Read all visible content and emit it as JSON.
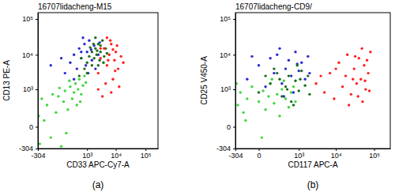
{
  "chart_data": [
    {
      "type": "scatter",
      "title": "16707lidacheng-M15",
      "caption": "(a)",
      "x_label": "CD33 APC-Cy7-A",
      "y_label": "CD13 PE-A",
      "log": true,
      "xlim": [
        -304,
        262144
      ],
      "ylim": [
        -304,
        150000
      ],
      "xticks": [
        -304,
        {
          "value": 1000,
          "label": "10³"
        },
        {
          "value": 10000,
          "label": "10⁴"
        },
        {
          "value": 100000,
          "label": "10⁵"
        }
      ],
      "yticks": [
        -304,
        0,
        {
          "value": 1000,
          "label": "10³"
        },
        {
          "value": 10000,
          "label": "10⁴"
        },
        {
          "value": 100000,
          "label": "10⁵"
        }
      ],
      "series": [
        {
          "color": "#3cd83c",
          "x": [
            -250,
            -150,
            -100,
            -50,
            0,
            20,
            50,
            80,
            100,
            150,
            200,
            250,
            300,
            350,
            400,
            450,
            500,
            600,
            700,
            800,
            -200,
            -280,
            120,
            30,
            -30,
            180,
            550,
            900
          ],
          "values": [
            -200,
            50,
            300,
            -100,
            150,
            600,
            -250,
            400,
            900,
            200,
            1200,
            500,
            800,
            1500,
            300,
            1000,
            2000,
            700,
            1300,
            2500,
            500,
            100,
            -50,
            1100,
            700,
            1800,
            400,
            1600
          ]
        },
        {
          "color": "#2a2ad2",
          "x": [
            100,
            200,
            300,
            400,
            500,
            600,
            800,
            900,
            1000,
            1200,
            1500,
            1800,
            2000,
            2500,
            300,
            700,
            1100,
            50,
            1400,
            2800,
            600,
            -50
          ],
          "values": [
            3000,
            6000,
            10000,
            4000,
            15000,
            8000,
            20000,
            5000,
            12000,
            25000,
            7000,
            18000,
            4000,
            10000,
            2000,
            30000,
            3000,
            8000,
            14000,
            22000,
            12000,
            5000
          ]
        },
        {
          "color": "#1c6e1c",
          "x": [
            500,
            800,
            1000,
            1200,
            1500,
            1800,
            2000,
            2200,
            2500,
            2800,
            3000,
            3500,
            4000,
            4500,
            1500,
            1000,
            2000,
            2500,
            3000,
            1700,
            600,
            5000,
            1300,
            2300,
            3800
          ],
          "values": [
            2500,
            4000,
            6000,
            9000,
            12000,
            8000,
            15000,
            10000,
            20000,
            7000,
            12000,
            25000,
            9000,
            15000,
            5000,
            3000,
            30000,
            5000,
            18000,
            20000,
            8000,
            11000,
            16000,
            13000,
            6000
          ]
        },
        {
          "color": "#ff2020",
          "x": [
            2500,
            3000,
            4000,
            5000,
            6000,
            7000,
            8000,
            9000,
            10000,
            12000,
            15000,
            4500,
            6500,
            3500,
            11000,
            5500,
            8000,
            13000,
            7000,
            9500,
            3000,
            18000,
            5000,
            2500
          ],
          "values": [
            3000,
            8000,
            15000,
            5000,
            10000,
            20000,
            2000,
            7000,
            12000,
            4000,
            9000,
            1500,
            25000,
            600,
            18000,
            7000,
            14000,
            1200,
            800,
            3500,
            15000,
            6000,
            30000,
            1000
          ]
        }
      ]
    },
    {
      "type": "scatter",
      "title": "16707lidacheng-CD9/",
      "caption": "(b)",
      "x_label": "CD117 APC-A",
      "y_label": "CD25 V450-A",
      "log": true,
      "xlim": [
        -304,
        262144
      ],
      "ylim": [
        -304,
        150000
      ],
      "xticks": [
        -304,
        0,
        {
          "value": 1000,
          "label": "10³"
        },
        {
          "value": 10000,
          "label": "10⁴"
        },
        {
          "value": 100000,
          "label": "10⁵"
        }
      ],
      "yticks": [
        -304,
        0,
        {
          "value": 1000,
          "label": "10³"
        },
        {
          "value": 10000,
          "label": "10⁴"
        },
        {
          "value": 100000,
          "label": "10⁵"
        }
      ],
      "series": [
        {
          "color": "#3cd83c",
          "x": [
            -250,
            -200,
            -150,
            -100,
            -50,
            0,
            30,
            50,
            80,
            100,
            150,
            200,
            250,
            300,
            400,
            500,
            600,
            800,
            -280,
            20,
            120,
            350,
            -120,
            700
          ],
          "values": [
            300,
            800,
            150,
            500,
            1200,
            400,
            900,
            200,
            600,
            1500,
            350,
            700,
            100,
            1000,
            500,
            250,
            800,
            400,
            1500,
            -100,
            2000,
            1800,
            50,
            1200
          ]
        },
        {
          "color": "#2a2ad2",
          "x": [
            -100,
            0,
            50,
            100,
            150,
            200,
            300,
            400,
            500,
            600,
            800,
            1000,
            1200,
            1500,
            -50,
            250,
            700,
            350,
            900,
            2000,
            1800
          ],
          "values": [
            2000,
            5000,
            1200,
            8000,
            3000,
            10000,
            1500,
            4000,
            7000,
            2500,
            12000,
            3500,
            6000,
            2000,
            9000,
            15000,
            800,
            600,
            5500,
            3000,
            9000
          ]
        },
        {
          "color": "#1c6e1c",
          "x": [
            0,
            100,
            200,
            300,
            400,
            500,
            600,
            800,
            1000,
            1200,
            1500,
            2000,
            250,
            700,
            900,
            1800,
            150,
            450,
            1100,
            50
          ],
          "values": [
            800,
            1500,
            3000,
            600,
            1200,
            2500,
            400,
            1800,
            900,
            3500,
            1300,
            700,
            2000,
            300,
            5000,
            2500,
            4000,
            1000,
            2000,
            2500
          ]
        },
        {
          "color": "#ff2020",
          "x": [
            3000,
            5000,
            7000,
            9000,
            12000,
            15000,
            18000,
            20000,
            25000,
            30000,
            35000,
            40000,
            45000,
            50000,
            55000,
            60000,
            70000,
            80000,
            22000,
            28000,
            38000,
            65000,
            10000,
            48000,
            4000,
            75000,
            32000,
            58000
          ],
          "values": [
            1500,
            800,
            3000,
            500,
            6000,
            1200,
            2500,
            10000,
            700,
            4000,
            1500,
            8000,
            2000,
            400,
            5000,
            1000,
            3000,
            12000,
            300,
            2000,
            600,
            7000,
            4000,
            15000,
            2500,
            900,
            9000,
            1800
          ]
        }
      ]
    }
  ]
}
